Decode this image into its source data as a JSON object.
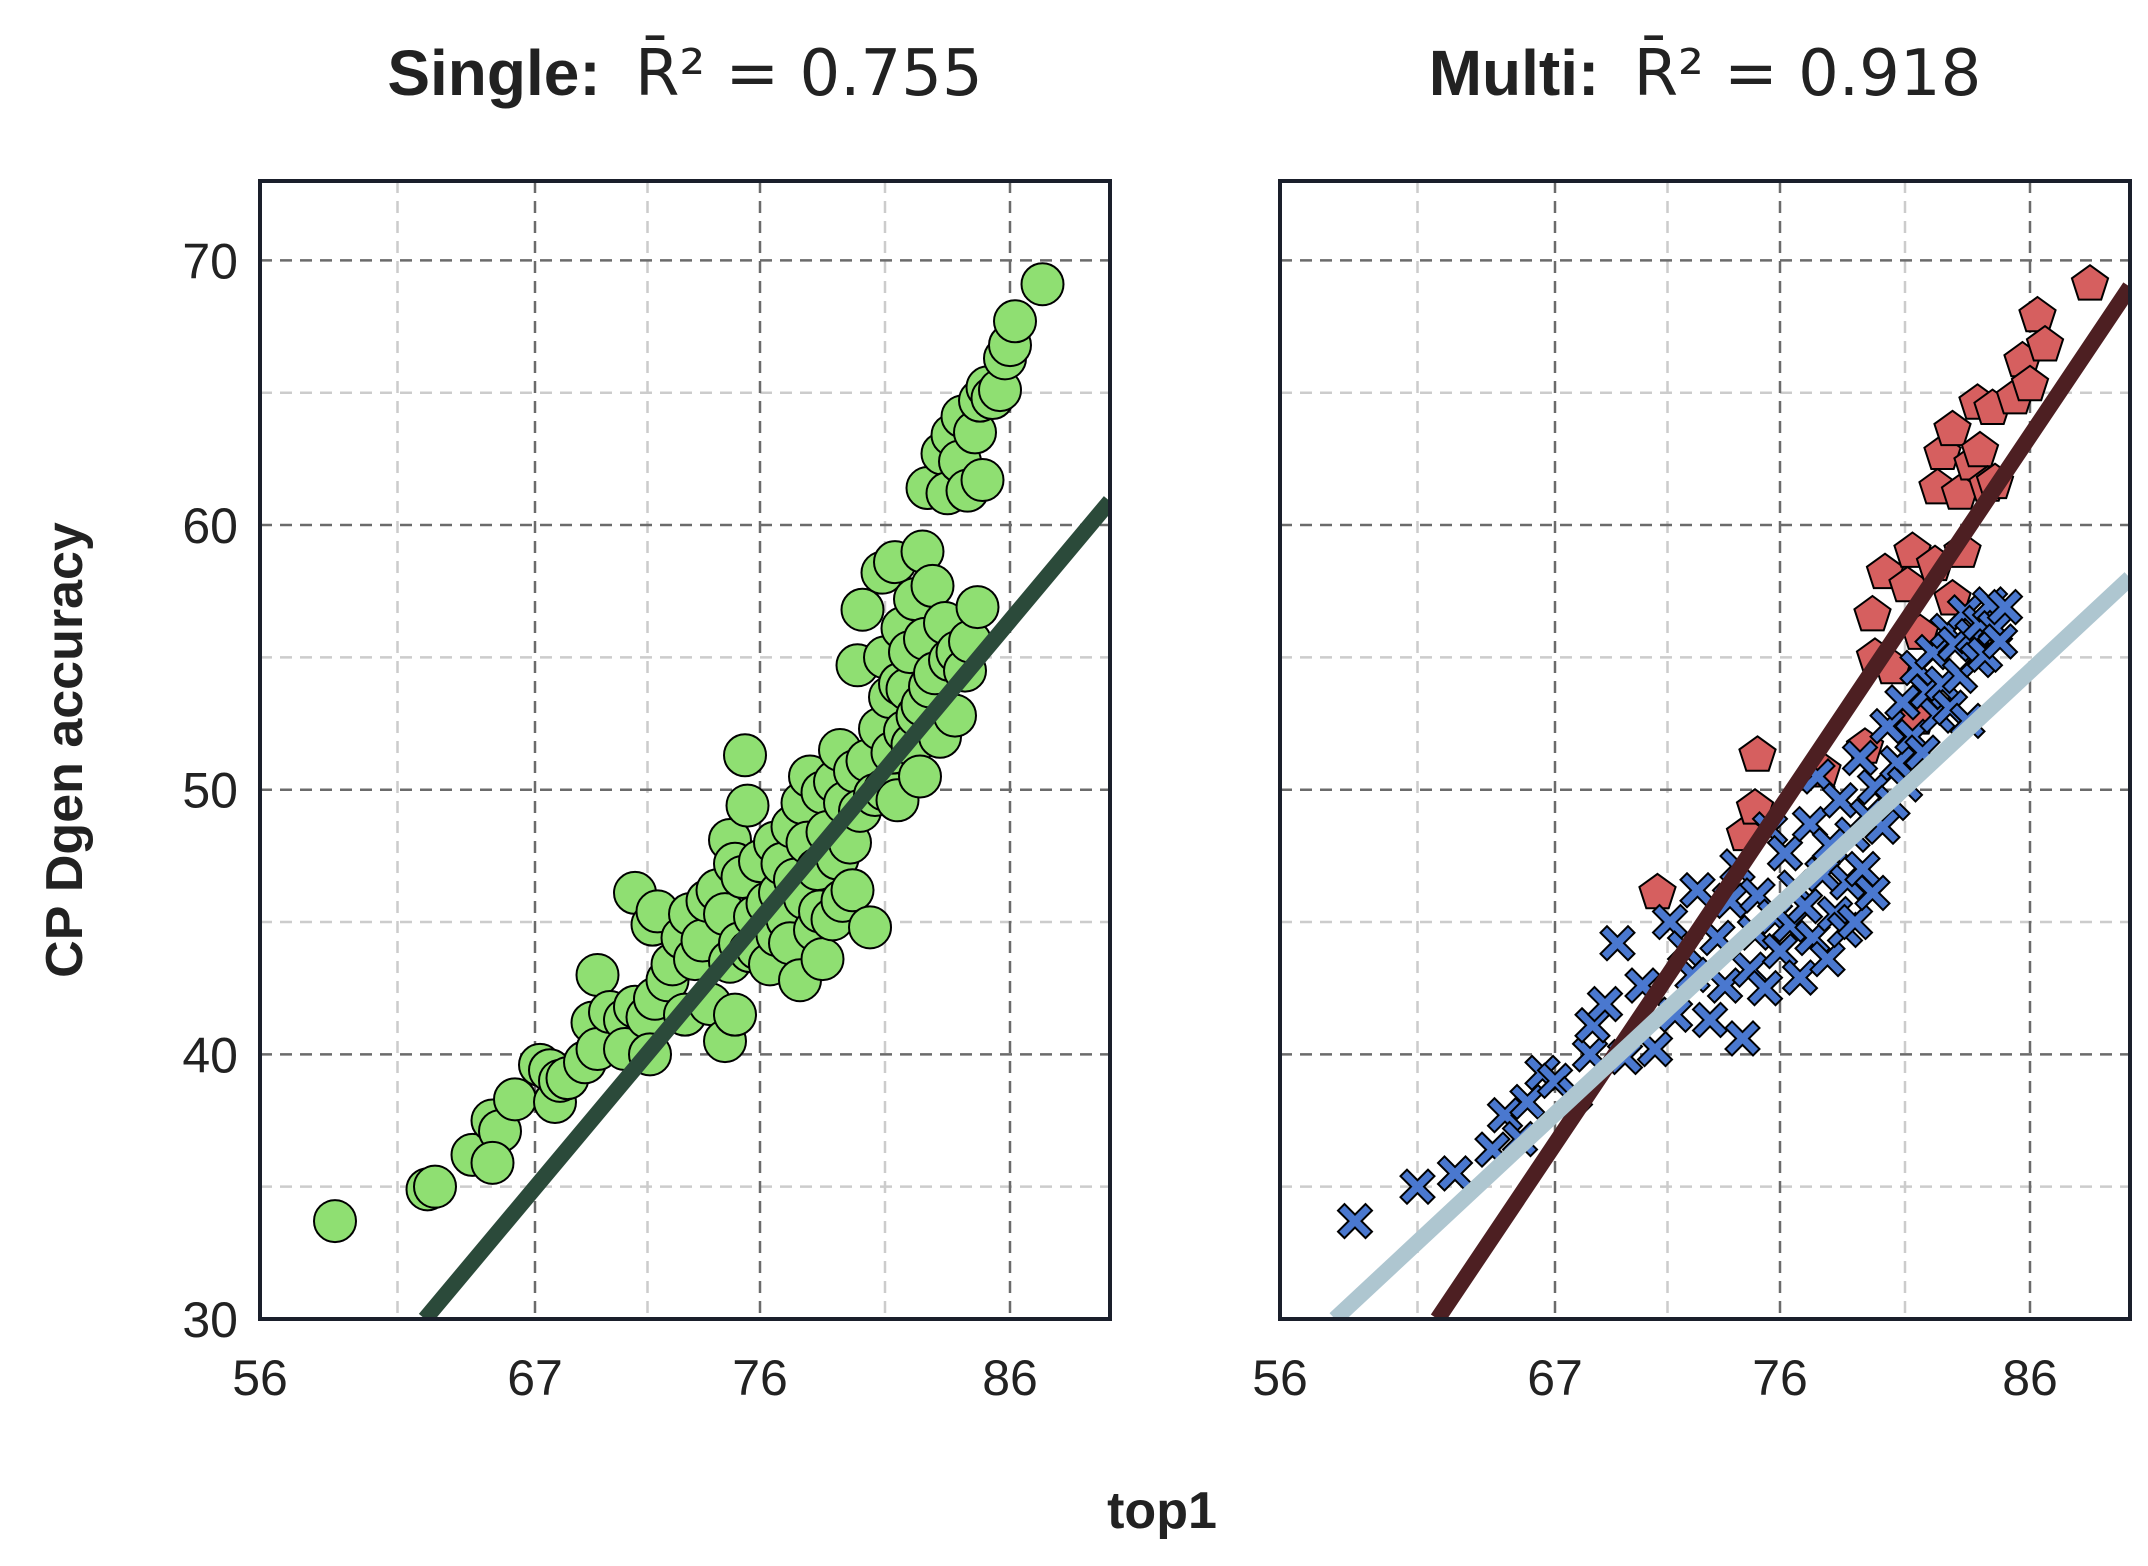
{
  "figure": {
    "xlabel": "top1",
    "ylabel": "CP Dgen accuracy"
  },
  "chart_data": [
    {
      "type": "scatter",
      "title_prefix": "Single:",
      "title_stat": "R̄² = 0.755",
      "xlim": [
        56,
        90
      ],
      "ylim": [
        30,
        73
      ],
      "xticks": [
        56,
        67,
        76,
        86
      ],
      "yticks": [
        30,
        40,
        50,
        60,
        70
      ],
      "grid": true,
      "series": [
        {
          "marker": "circle",
          "color": "#8fdf72",
          "edge_color": "#000000",
          "fit_color": "#2b4a3a",
          "fit_line": [
            [
              62.6,
              30.0
            ],
            [
              90.0,
              60.9
            ]
          ],
          "points": [
            [
              59,
              33.7
            ],
            [
              62.7,
              34.9
            ],
            [
              63.0,
              35.0
            ],
            [
              64.5,
              36.2
            ],
            [
              65.3,
              37.5
            ],
            [
              65.6,
              37.1
            ],
            [
              65.3,
              35.9
            ],
            [
              66.2,
              38.3
            ],
            [
              67.2,
              39.6
            ],
            [
              67.6,
              39.4
            ],
            [
              67.8,
              38.2
            ],
            [
              68.0,
              39.0
            ],
            [
              68.3,
              39.1
            ],
            [
              69.0,
              39.7
            ],
            [
              69.3,
              41.2
            ],
            [
              69.5,
              40.2
            ],
            [
              69.5,
              43.0
            ],
            [
              70.0,
              41.6
            ],
            [
              70.6,
              41.3
            ],
            [
              70.6,
              40.2
            ],
            [
              71.0,
              41.8
            ],
            [
              71.0,
              46.1
            ],
            [
              71.5,
              41.4
            ],
            [
              71.6,
              40.0
            ],
            [
              71.7,
              44.9
            ],
            [
              71.8,
              42.1
            ],
            [
              71.9,
              45.4
            ],
            [
              72.3,
              42.8
            ],
            [
              72.5,
              43.4
            ],
            [
              72.9,
              44.4
            ],
            [
              73.0,
              41.5
            ],
            [
              73.2,
              45.3
            ],
            [
              73.4,
              43.6
            ],
            [
              73.7,
              44.3
            ],
            [
              73.9,
              45.8
            ],
            [
              74.0,
              41.9
            ],
            [
              74.3,
              46.2
            ],
            [
              74.6,
              45.3
            ],
            [
              74.6,
              40.5
            ],
            [
              74.8,
              43.5
            ],
            [
              74.8,
              48.1
            ],
            [
              75.0,
              41.5
            ],
            [
              75.0,
              47.2
            ],
            [
              75.2,
              44.2
            ],
            [
              75.3,
              46.7
            ],
            [
              75.4,
              51.3
            ],
            [
              75.5,
              49.4
            ],
            [
              75.6,
              43.9
            ],
            [
              75.8,
              45.2
            ],
            [
              75.9,
              44.0
            ],
            [
              76.0,
              47.3
            ],
            [
              76.3,
              45.7
            ],
            [
              76.4,
              43.4
            ],
            [
              76.6,
              48.0
            ],
            [
              76.7,
              44.5
            ],
            [
              76.8,
              46.1
            ],
            [
              76.9,
              47.2
            ],
            [
              77.1,
              45.1
            ],
            [
              77.2,
              44.2
            ],
            [
              77.3,
              48.6
            ],
            [
              77.4,
              46.6
            ],
            [
              77.6,
              42.8
            ],
            [
              77.7,
              49.5
            ],
            [
              77.8,
              45.9
            ],
            [
              77.9,
              48.0
            ],
            [
              78.0,
              50.5
            ],
            [
              78.2,
              44.7
            ],
            [
              78.3,
              47.0
            ],
            [
              78.4,
              45.4
            ],
            [
              78.5,
              49.9
            ],
            [
              78.5,
              43.6
            ],
            [
              78.7,
              48.4
            ],
            [
              78.9,
              45.1
            ],
            [
              79.0,
              50.3
            ],
            [
              79.1,
              47.4
            ],
            [
              79.2,
              51.5
            ],
            [
              79.3,
              45.8
            ],
            [
              79.4,
              49.5
            ],
            [
              79.6,
              48.0
            ],
            [
              79.7,
              46.2
            ],
            [
              79.8,
              50.7
            ],
            [
              79.9,
              54.7
            ],
            [
              80.0,
              49.2
            ],
            [
              80.1,
              56.8
            ],
            [
              80.3,
              51.1
            ],
            [
              80.4,
              44.8
            ],
            [
              80.6,
              49.8
            ],
            [
              80.8,
              52.3
            ],
            [
              80.9,
              58.2
            ],
            [
              81.0,
              50.0
            ],
            [
              81.0,
              55.0
            ],
            [
              81.2,
              53.5
            ],
            [
              81.3,
              51.4
            ],
            [
              81.4,
              58.6
            ],
            [
              81.5,
              49.6
            ],
            [
              81.6,
              54.0
            ],
            [
              81.7,
              56.1
            ],
            [
              81.8,
              52.2
            ],
            [
              81.9,
              53.8
            ],
            [
              82.0,
              55.2
            ],
            [
              82.1,
              51.7
            ],
            [
              82.2,
              57.2
            ],
            [
              82.3,
              52.8
            ],
            [
              82.4,
              50.5
            ],
            [
              82.5,
              53.2
            ],
            [
              82.5,
              59.0
            ],
            [
              82.6,
              55.7
            ],
            [
              82.7,
              61.4
            ],
            [
              82.8,
              53.9
            ],
            [
              82.9,
              57.7
            ],
            [
              83.0,
              54.4
            ],
            [
              83.2,
              52.0
            ],
            [
              83.3,
              62.7
            ],
            [
              83.4,
              56.3
            ],
            [
              83.5,
              61.2
            ],
            [
              83.6,
              54.9
            ],
            [
              83.7,
              63.4
            ],
            [
              83.8,
              52.8
            ],
            [
              83.9,
              55.2
            ],
            [
              84.0,
              62.4
            ],
            [
              84.1,
              64.1
            ],
            [
              84.2,
              54.5
            ],
            [
              84.3,
              61.3
            ],
            [
              84.4,
              55.6
            ],
            [
              84.6,
              63.5
            ],
            [
              84.7,
              56.9
            ],
            [
              84.8,
              64.7
            ],
            [
              84.9,
              61.7
            ],
            [
              85.1,
              65.2
            ],
            [
              85.3,
              64.8
            ],
            [
              85.6,
              65.1
            ],
            [
              85.8,
              66.3
            ],
            [
              86.0,
              66.8
            ],
            [
              86.2,
              67.7
            ],
            [
              87.3,
              69.1
            ]
          ]
        }
      ]
    },
    {
      "type": "scatter",
      "title_prefix": "Multi:",
      "title_stat": "R̄² = 0.918",
      "xlim": [
        56,
        90
      ],
      "ylim": [
        30,
        73
      ],
      "xticks": [
        56,
        67,
        76,
        86
      ],
      "yticks": [
        30,
        40,
        50,
        60,
        70
      ],
      "grid": true,
      "series": [
        {
          "marker": "pentagon",
          "color": "#d65f5f",
          "edge_color": "#000000",
          "fit_color": "#4d1f22",
          "fit_line": [
            [
              62.3,
              30.0
            ],
            [
              90.0,
              69.0
            ]
          ],
          "points": [
            [
              71.1,
              46.1
            ],
            [
              75.1,
              51.3
            ],
            [
              74.6,
              48.3
            ],
            [
              75.0,
              49.3
            ],
            [
              77.7,
              50.7
            ],
            [
              79.4,
              51.6
            ],
            [
              79.8,
              55.0
            ],
            [
              79.7,
              56.6
            ],
            [
              80.2,
              58.2
            ],
            [
              80.5,
              54.6
            ],
            [
              81.1,
              57.7
            ],
            [
              81.3,
              59.0
            ],
            [
              81.5,
              52.7
            ],
            [
              81.6,
              55.9
            ],
            [
              82.2,
              58.5
            ],
            [
              82.3,
              61.4
            ],
            [
              82.5,
              62.7
            ],
            [
              82.9,
              57.2
            ],
            [
              82.9,
              63.6
            ],
            [
              83.3,
              59.0
            ],
            [
              83.2,
              61.2
            ],
            [
              83.9,
              64.6
            ],
            [
              83.7,
              62.3
            ],
            [
              84.0,
              62.8
            ],
            [
              84.3,
              61.5
            ],
            [
              84.5,
              64.4
            ],
            [
              84.6,
              61.6
            ],
            [
              85.4,
              64.8
            ],
            [
              85.7,
              66.2
            ],
            [
              86.0,
              65.3
            ],
            [
              86.3,
              67.9
            ],
            [
              86.6,
              66.8
            ],
            [
              88.4,
              69.1
            ]
          ]
        },
        {
          "marker": "x",
          "color": "#4a78cf",
          "edge_color": "#000000",
          "fit_color": "#aec6d0",
          "fit_line": [
            [
              58.2,
              30.0
            ],
            [
              90.0,
              58.0
            ]
          ],
          "points": [
            [
              59.0,
              33.7
            ],
            [
              61.5,
              35.0
            ],
            [
              63.0,
              35.5
            ],
            [
              64.5,
              36.4
            ],
            [
              65.0,
              37.7
            ],
            [
              65.6,
              36.8
            ],
            [
              65.9,
              38.2
            ],
            [
              66.5,
              39.3
            ],
            [
              67.0,
              39.0
            ],
            [
              67.8,
              38.5
            ],
            [
              68.4,
              40.0
            ],
            [
              68.5,
              41.1
            ],
            [
              69.0,
              41.9
            ],
            [
              69.5,
              44.2
            ],
            [
              69.8,
              39.9
            ],
            [
              70.5,
              42.6
            ],
            [
              71.0,
              40.2
            ],
            [
              71.6,
              45.0
            ],
            [
              71.8,
              41.5
            ],
            [
              72.2,
              44.0
            ],
            [
              72.5,
              43.0
            ],
            [
              72.7,
              46.2
            ],
            [
              73.2,
              41.3
            ],
            [
              73.5,
              44.4
            ],
            [
              73.8,
              42.6
            ],
            [
              74.0,
              45.8
            ],
            [
              74.3,
              47.1
            ],
            [
              74.5,
              40.6
            ],
            [
              74.8,
              43.2
            ],
            [
              75.0,
              44.6
            ],
            [
              75.1,
              46.0
            ],
            [
              75.4,
              42.5
            ],
            [
              75.6,
              48.5
            ],
            [
              75.8,
              45.2
            ],
            [
              76.0,
              43.9
            ],
            [
              76.2,
              47.6
            ],
            [
              76.4,
              44.9
            ],
            [
              76.6,
              46.3
            ],
            [
              76.8,
              42.9
            ],
            [
              77.0,
              45.6
            ],
            [
              77.2,
              48.7
            ],
            [
              77.3,
              44.4
            ],
            [
              77.5,
              50.5
            ],
            [
              77.7,
              46.8
            ],
            [
              77.9,
              43.6
            ],
            [
              78.0,
              47.9
            ],
            [
              78.2,
              45.3
            ],
            [
              78.4,
              49.6
            ],
            [
              78.6,
              44.7
            ],
            [
              78.7,
              46.5
            ],
            [
              78.9,
              48.3
            ],
            [
              79.0,
              45.0
            ],
            [
              79.2,
              51.2
            ],
            [
              79.3,
              47.0
            ],
            [
              79.5,
              49.0
            ],
            [
              79.7,
              46.1
            ],
            [
              79.8,
              50.1
            ],
            [
              80.1,
              48.6
            ],
            [
              80.3,
              52.4
            ],
            [
              80.5,
              49.5
            ],
            [
              80.7,
              51.0
            ],
            [
              80.9,
              53.3
            ],
            [
              81.0,
              50.2
            ],
            [
              81.3,
              52.0
            ],
            [
              81.5,
              54.6
            ],
            [
              81.7,
              51.4
            ],
            [
              81.9,
              53.7
            ],
            [
              82.1,
              55.2
            ],
            [
              82.3,
              52.8
            ],
            [
              82.5,
              54.0
            ],
            [
              82.7,
              56.0
            ],
            [
              82.8,
              53.1
            ],
            [
              83.0,
              55.5
            ],
            [
              83.2,
              54.3
            ],
            [
              83.4,
              56.7
            ],
            [
              83.5,
              52.6
            ],
            [
              83.7,
              55.8
            ],
            [
              83.9,
              54.9
            ],
            [
              84.0,
              56.3
            ],
            [
              84.2,
              55.1
            ],
            [
              84.4,
              57.0
            ],
            [
              84.6,
              56.1
            ],
            [
              84.8,
              55.6
            ],
            [
              85.0,
              56.9
            ]
          ]
        }
      ]
    }
  ]
}
